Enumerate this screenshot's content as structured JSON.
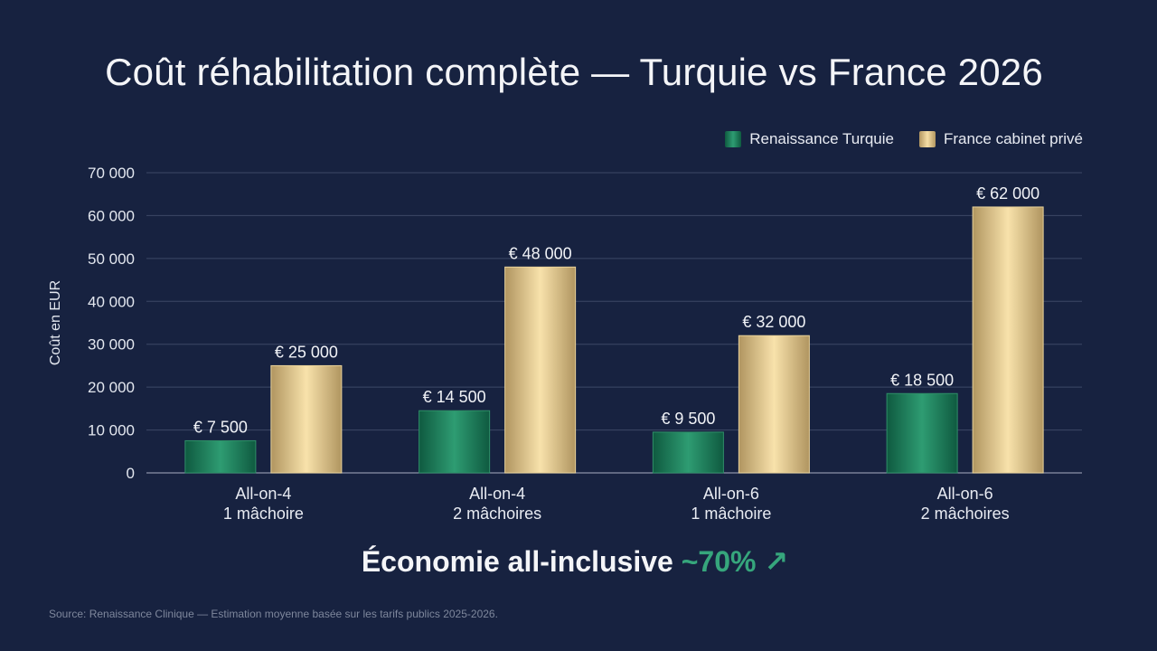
{
  "title": "Coût réhabilitation complète — Turquie vs France 2026",
  "colors": {
    "background": "#172240",
    "green_series": "#1f7a58",
    "gold_series": "#e6cc8e",
    "accent": "#36a67c",
    "grid": "#4a5572"
  },
  "legend": [
    {
      "name": "Renaissance Turquie",
      "swatch": "green"
    },
    {
      "name": "France cabinet privé",
      "swatch": "gold"
    }
  ],
  "savings": {
    "text": "Économie all-inclusive",
    "highlight": "~70%",
    "icon": "arrow-up-right-icon",
    "arrow": "↗"
  },
  "source": "Source: Renaissance Clinique — Estimation moyenne basée sur les tarifs publics 2025-2026.",
  "chart_data": {
    "type": "bar",
    "title": "Coût réhabilitation complète — Turquie vs France 2026",
    "ylabel": "Coût en EUR",
    "xlabel": "",
    "ylim": [
      0,
      70000
    ],
    "yticks": [
      "0",
      "10 000",
      "20 000",
      "30 000",
      "40 000",
      "50 000",
      "60 000",
      "70 000"
    ],
    "grid": true,
    "legend_position": "top-right",
    "categories": [
      [
        "All-on-4",
        "1 mâchoire"
      ],
      [
        "All-on-4",
        "2 mâchoires"
      ],
      [
        "All-on-6",
        "1 mâchoire"
      ],
      [
        "All-on-6",
        "2 mâchoires"
      ]
    ],
    "series": [
      {
        "name": "Renaissance Turquie",
        "values": [
          7500,
          14500,
          9500,
          18500
        ],
        "labels": [
          "€ 7 500",
          "€ 14 500",
          "€ 9 500",
          "€ 18 500"
        ]
      },
      {
        "name": "France cabinet privé",
        "values": [
          25000,
          48000,
          32000,
          62000
        ],
        "labels": [
          "€ 25 000",
          "€ 48 000",
          "€ 32 000",
          "€ 62 000"
        ]
      }
    ]
  }
}
